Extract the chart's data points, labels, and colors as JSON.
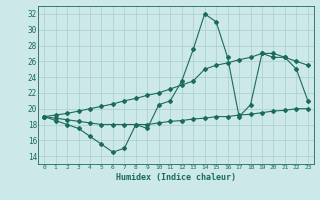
{
  "xlabel": "Humidex (Indice chaleur)",
  "xlim": [
    -0.5,
    23.5
  ],
  "ylim": [
    13,
    33
  ],
  "yticks": [
    14,
    16,
    18,
    20,
    22,
    24,
    26,
    28,
    30,
    32
  ],
  "xticks": [
    0,
    1,
    2,
    3,
    4,
    5,
    6,
    7,
    8,
    9,
    10,
    11,
    12,
    13,
    14,
    15,
    16,
    17,
    18,
    19,
    20,
    21,
    22,
    23
  ],
  "bg_color": "#cce8e8",
  "grid_color": "#aacece",
  "line_color": "#1a6b5a",
  "line1_x": [
    0,
    1,
    2,
    3,
    4,
    5,
    6,
    7,
    8,
    9,
    10,
    11,
    12,
    13,
    14,
    15,
    16,
    17,
    18,
    19,
    20,
    21,
    22,
    23
  ],
  "line1_y": [
    19,
    18.5,
    18,
    17.5,
    16.5,
    15.5,
    14.5,
    15,
    18,
    17.5,
    20.5,
    21,
    23.5,
    27.5,
    32,
    31,
    26.5,
    19,
    20.5,
    27,
    27,
    26.5,
    25,
    21
  ],
  "line2_x": [
    0,
    1,
    2,
    3,
    4,
    5,
    6,
    7,
    8,
    9,
    10,
    11,
    12,
    13,
    14,
    15,
    16,
    17,
    18,
    19,
    20,
    21,
    22,
    23
  ],
  "line2_y": [
    19,
    19.2,
    19.4,
    19.7,
    20,
    20.3,
    20.6,
    21,
    21.3,
    21.7,
    22,
    22.5,
    23,
    23.5,
    25,
    25.5,
    25.8,
    26.2,
    26.5,
    27,
    26.5,
    26.5,
    26,
    25.5
  ],
  "line3_x": [
    0,
    1,
    2,
    3,
    4,
    5,
    6,
    7,
    8,
    9,
    10,
    11,
    12,
    13,
    14,
    15,
    16,
    17,
    18,
    19,
    20,
    21,
    22,
    23
  ],
  "line3_y": [
    19,
    18.8,
    18.6,
    18.4,
    18.2,
    18,
    18,
    18,
    18,
    18,
    18.2,
    18.4,
    18.5,
    18.7,
    18.8,
    19,
    19,
    19.2,
    19.3,
    19.5,
    19.7,
    19.8,
    20,
    20
  ],
  "marker_size": 2,
  "linewidth": 0.8
}
